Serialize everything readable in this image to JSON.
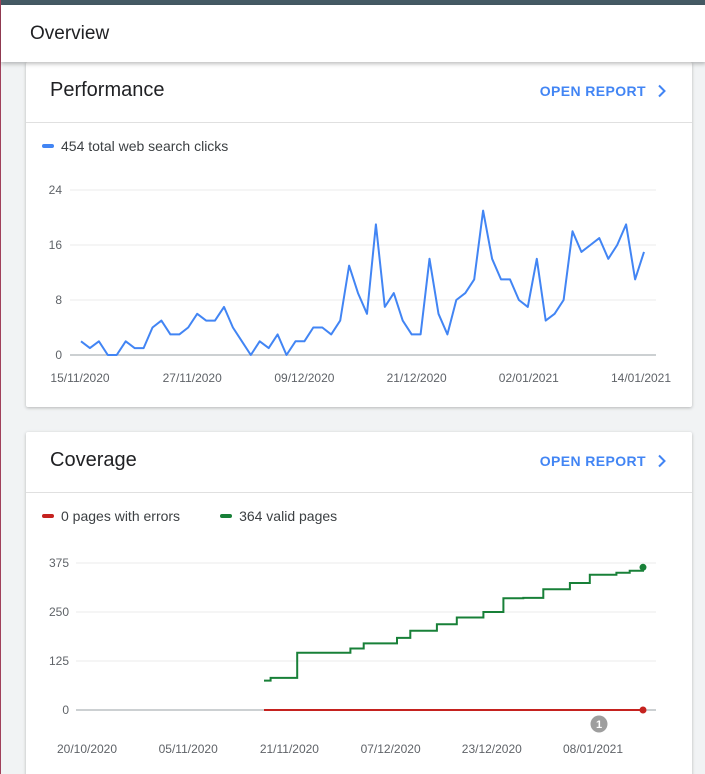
{
  "header": {
    "title": "Overview"
  },
  "performance": {
    "title": "Performance",
    "open_report": "OPEN REPORT",
    "legend": "454 total web search clicks"
  },
  "coverage": {
    "title": "Coverage",
    "open_report": "OPEN REPORT",
    "legend_errors": "0 pages with errors",
    "legend_valid": "364 valid pages",
    "annotation": "1"
  },
  "colors": {
    "clicks": "#4285f4",
    "errors": "#c5221f",
    "valid": "#188038",
    "annotation": "#9e9e9e"
  },
  "chart_data": [
    {
      "type": "line",
      "series": [
        {
          "name": "454 total web search clicks",
          "values": [
            2,
            1,
            2,
            0,
            0,
            2,
            1,
            1,
            4,
            5,
            3,
            3,
            4,
            6,
            5,
            5,
            7,
            4,
            2,
            0,
            2,
            1,
            3,
            0,
            2,
            2,
            4,
            4,
            3,
            5,
            13,
            9,
            6,
            19,
            7,
            9,
            5,
            3,
            3,
            14,
            6,
            3,
            8,
            9,
            11,
            21,
            14,
            11,
            11,
            8,
            7,
            14,
            5,
            6,
            8,
            18,
            15,
            16,
            17,
            14,
            16,
            19,
            11,
            15
          ]
        }
      ],
      "x_tick_labels": [
        "15/11/2020",
        "27/11/2020",
        "09/12/2020",
        "21/12/2020",
        "02/01/2021",
        "14/01/2021"
      ],
      "y_ticks": [
        0,
        8,
        16,
        24
      ],
      "ylim": [
        0,
        24
      ],
      "grid": true
    },
    {
      "type": "line",
      "series": [
        {
          "name": "364 valid pages",
          "values": [
            75,
            82,
            82,
            82,
            82,
            146,
            146,
            146,
            146,
            146,
            146,
            146,
            146,
            157,
            157,
            170,
            170,
            170,
            170,
            170,
            184,
            184,
            202,
            202,
            202,
            202,
            219,
            219,
            219,
            236,
            236,
            236,
            236,
            250,
            250,
            250,
            285,
            285,
            285,
            286,
            286,
            286,
            308,
            308,
            308,
            308,
            324,
            324,
            324,
            345,
            345,
            345,
            345,
            350,
            350,
            355,
            355,
            364
          ]
        },
        {
          "name": "0 pages with errors",
          "values": [
            0,
            0,
            0,
            0,
            0,
            0,
            0,
            0,
            0,
            0,
            0,
            0,
            0,
            0,
            0,
            0,
            0,
            0,
            0,
            0,
            0,
            0,
            0,
            0,
            0,
            0,
            0,
            0,
            0,
            0,
            0,
            0,
            0,
            0,
            0,
            0,
            0,
            0,
            0,
            0,
            0,
            0,
            0,
            0,
            0,
            0,
            0,
            0,
            0,
            0,
            0,
            0,
            0,
            0,
            0,
            0,
            0,
            0
          ]
        }
      ],
      "x_tick_labels": [
        "20/10/2020",
        "05/11/2020",
        "21/11/2020",
        "07/12/2020",
        "23/12/2020",
        "08/01/2021"
      ],
      "y_ticks": [
        0,
        125,
        250,
        375
      ],
      "ylim": [
        0,
        375
      ],
      "grid": true
    }
  ]
}
